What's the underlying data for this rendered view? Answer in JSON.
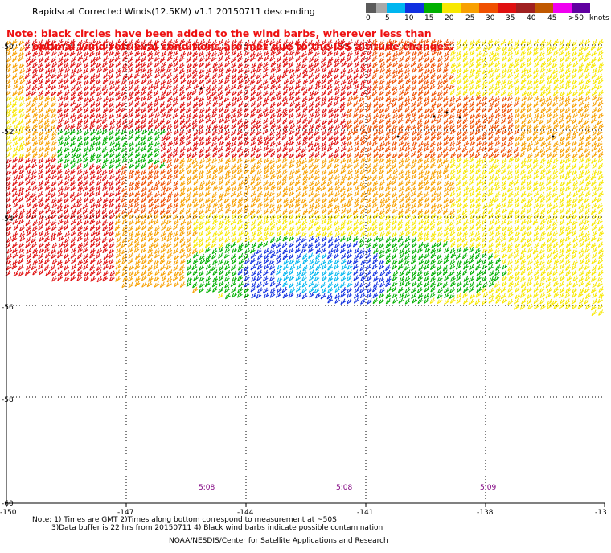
{
  "title": "Rapidscat Corrected Winds(12.5KM) v1.1 20150711 descending",
  "note": {
    "line1": "Note: black circles have been added to the wind barbs, wherever less than",
    "line2": "optimal wind retrieval conditions are met due to the ISS altitude changes."
  },
  "legend": {
    "unit": "knots",
    "labels": [
      "0",
      "5",
      "10",
      "15",
      "20",
      "25",
      "30",
      "35",
      "40",
      "45",
      ">50"
    ],
    "colors": [
      "#5a5a5a",
      "#a8a8a8",
      "#00b6f0",
      "#1030e0",
      "#00b000",
      "#f8e800",
      "#f8a000",
      "#f05000",
      "#e01010",
      "#a02020",
      "#c05800",
      "#f000f0",
      "#6000a0"
    ]
  },
  "axes": {
    "lon_labels": [
      "-150",
      "-147",
      "-144",
      "-141",
      "-138",
      "-13"
    ],
    "lat_labels": [
      "-50",
      "-52",
      "-54",
      "-56",
      "-58",
      "-60"
    ]
  },
  "times": [
    "5:08",
    "5:08",
    "5:09"
  ],
  "footer": {
    "line1": "Note: 1) Times are GMT 2)Times along bottom correspond to measurement at ~50S",
    "line2": "3)Data buffer is 22 hrs from 20150711 4) Black wind barbs indicate possible contamination"
  },
  "credit": "NOAA/NESDIS/Center for Satellite Applications and Research",
  "colors": {
    "note": "#ee1111",
    "time": "#800080",
    "grid": "#000000"
  }
}
